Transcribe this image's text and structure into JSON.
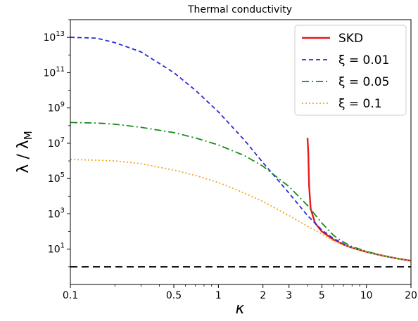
{
  "chart_data": {
    "type": "line",
    "title": "Thermal conductivity",
    "xlabel": "κ",
    "ylabel": "λ / λ_M",
    "x_scale": "log",
    "y_scale": "log",
    "xlim": [
      0.1,
      20
    ],
    "ylim": [
      0.1,
      100000000000000.0
    ],
    "x_ticks": [
      {
        "value": 0.1,
        "label": "0.1"
      },
      {
        "value": 0.5,
        "label": "0.5"
      },
      {
        "value": 1,
        "label": "1"
      },
      {
        "value": 2,
        "label": "2"
      },
      {
        "value": 3,
        "label": "3"
      },
      {
        "value": 5,
        "label": "5"
      },
      {
        "value": 10,
        "label": "10"
      },
      {
        "value": 20,
        "label": "20"
      }
    ],
    "y_ticks": [
      {
        "value": 10,
        "mantissa": "10",
        "exp": "1"
      },
      {
        "value": 1000,
        "mantissa": "10",
        "exp": "3"
      },
      {
        "value": 100000,
        "mantissa": "10",
        "exp": "5"
      },
      {
        "value": 10000000,
        "mantissa": "10",
        "exp": "7"
      },
      {
        "value": 1000000000,
        "mantissa": "10",
        "exp": "9"
      },
      {
        "value": 100000000000,
        "mantissa": "10",
        "exp": "11"
      },
      {
        "value": 10000000000000,
        "mantissa": "10",
        "exp": "13"
      }
    ],
    "grid": false,
    "legend_position": "top-right",
    "series": [
      {
        "name": "SKD",
        "color": "#e8191c",
        "style": "solid",
        "points": [
          [
            4.0,
            20000000
          ],
          [
            4.05,
            3000000
          ],
          [
            4.1,
            40000
          ],
          [
            4.2,
            2000
          ],
          [
            4.5,
            300
          ],
          [
            5,
            100
          ],
          [
            6,
            35
          ],
          [
            7,
            18
          ],
          [
            8,
            12
          ],
          [
            10,
            7
          ],
          [
            13,
            4.2
          ],
          [
            16,
            3
          ],
          [
            20,
            2.2
          ]
        ]
      },
      {
        "name": "ξ = 0.01",
        "color": "#2b2bd6",
        "style": "dashed",
        "points": [
          [
            0.1,
            10000000000000.0
          ],
          [
            0.15,
            9000000000000.0
          ],
          [
            0.2,
            5000000000000.0
          ],
          [
            0.3,
            1500000000000.0
          ],
          [
            0.5,
            100000000000.0
          ],
          [
            0.7,
            10000000000.0
          ],
          [
            1,
            600000000.0
          ],
          [
            1.5,
            15000000.0
          ],
          [
            2,
            800000.0
          ],
          [
            3,
            15000
          ],
          [
            4,
            800
          ],
          [
            4.5,
            300
          ],
          [
            5,
            120
          ],
          [
            6,
            40
          ],
          [
            7,
            20
          ],
          [
            8,
            12
          ],
          [
            10,
            7
          ],
          [
            13,
            4.2
          ],
          [
            16,
            3
          ],
          [
            20,
            2.2
          ]
        ]
      },
      {
        "name": "ξ = 0.05",
        "color": "#1c8a1c",
        "style": "dashdot",
        "points": [
          [
            0.1,
            150000000.0
          ],
          [
            0.15,
            140000000.0
          ],
          [
            0.2,
            120000000.0
          ],
          [
            0.3,
            80000000.0
          ],
          [
            0.5,
            40000000.0
          ],
          [
            0.7,
            20000000.0
          ],
          [
            1,
            8000000.0
          ],
          [
            1.5,
            2000000.0
          ],
          [
            2,
            500000.0
          ],
          [
            3,
            35000
          ],
          [
            4,
            3000
          ],
          [
            5,
            300
          ],
          [
            6,
            60
          ],
          [
            7,
            25
          ],
          [
            8,
            14
          ],
          [
            10,
            7.5
          ],
          [
            13,
            4.3
          ],
          [
            16,
            3
          ],
          [
            20,
            2.2
          ]
        ]
      },
      {
        "name": "ξ = 0.1",
        "color": "#f5a623",
        "style": "dotted",
        "points": [
          [
            0.1,
            1200000.0
          ],
          [
            0.15,
            1100000.0
          ],
          [
            0.2,
            1000000.0
          ],
          [
            0.3,
            700000.0
          ],
          [
            0.5,
            300000.0
          ],
          [
            0.7,
            150000.0
          ],
          [
            1,
            60000.0
          ],
          [
            1.5,
            15000.0
          ],
          [
            2,
            5000
          ],
          [
            3,
            800
          ],
          [
            4,
            200
          ],
          [
            5,
            70
          ],
          [
            6,
            30
          ],
          [
            7,
            18
          ],
          [
            8,
            12
          ],
          [
            10,
            7
          ],
          [
            13,
            4.2
          ],
          [
            16,
            3
          ],
          [
            20,
            2.2
          ]
        ]
      },
      {
        "name": "",
        "color": "#000000",
        "style": "longdash",
        "legend": false,
        "points": [
          [
            0.1,
            1
          ],
          [
            20,
            1
          ]
        ]
      }
    ]
  }
}
